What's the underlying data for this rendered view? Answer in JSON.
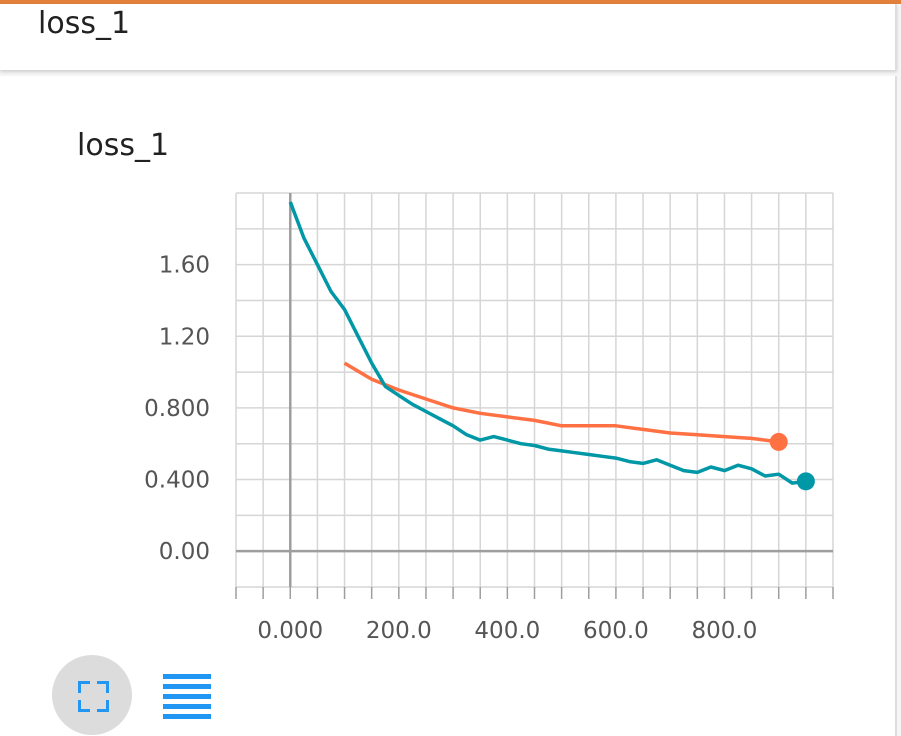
{
  "card": {
    "title": "loss_1"
  },
  "chart_data": {
    "type": "line",
    "title": "loss_1",
    "xlabel": "",
    "ylabel": "",
    "xlim": [
      -100,
      1000
    ],
    "ylim": [
      -0.2,
      2.0
    ],
    "x_ticks": [
      0,
      200,
      400,
      600,
      800
    ],
    "x_tick_labels": [
      "0.000",
      "200.0",
      "400.0",
      "600.0",
      "800.0"
    ],
    "y_ticks": [
      0,
      0.4,
      0.8,
      1.2,
      1.6
    ],
    "y_tick_labels": [
      "0.00",
      "0.400",
      "0.800",
      "1.20",
      "1.60"
    ],
    "grid": true,
    "series": [
      {
        "color": "#ff7043",
        "x": [
          100,
          150,
          200,
          250,
          300,
          350,
          400,
          450,
          500,
          550,
          600,
          650,
          700,
          750,
          800,
          850,
          900
        ],
        "y": [
          1.05,
          0.96,
          0.9,
          0.85,
          0.8,
          0.77,
          0.75,
          0.73,
          0.7,
          0.7,
          0.7,
          0.68,
          0.66,
          0.65,
          0.64,
          0.63,
          0.61
        ]
      },
      {
        "color": "#0097a7",
        "x": [
          0,
          25,
          50,
          75,
          100,
          125,
          150,
          175,
          200,
          225,
          250,
          275,
          300,
          325,
          350,
          375,
          400,
          425,
          450,
          475,
          500,
          525,
          550,
          575,
          600,
          625,
          650,
          675,
          700,
          725,
          750,
          775,
          800,
          825,
          850,
          875,
          900,
          925,
          950
        ],
        "y": [
          1.95,
          1.75,
          1.6,
          1.45,
          1.35,
          1.2,
          1.05,
          0.92,
          0.87,
          0.82,
          0.78,
          0.74,
          0.7,
          0.65,
          0.62,
          0.64,
          0.62,
          0.6,
          0.59,
          0.57,
          0.56,
          0.55,
          0.54,
          0.53,
          0.52,
          0.5,
          0.49,
          0.51,
          0.48,
          0.45,
          0.44,
          0.47,
          0.45,
          0.48,
          0.46,
          0.42,
          0.43,
          0.38,
          0.39
        ]
      }
    ]
  },
  "icons": {
    "expand": "fullscreen-icon",
    "data_view": "list-icon"
  }
}
